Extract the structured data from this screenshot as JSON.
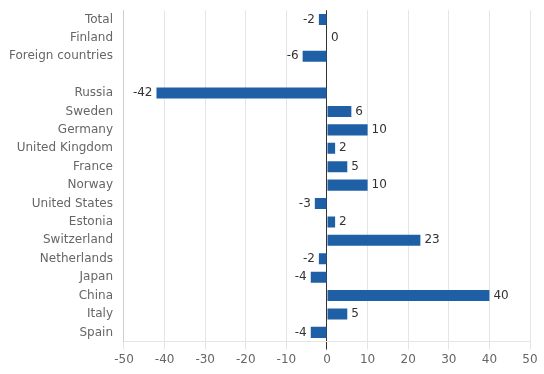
{
  "chart_data": {
    "type": "bar",
    "orientation": "horizontal",
    "categories": [
      "Total",
      "Finland",
      "Foreign countries",
      null,
      "Russia",
      "Sweden",
      "Germany",
      "United Kingdom",
      "France",
      "Norway",
      "United States",
      "Estonia",
      "Switzerland",
      "Netherlands",
      "Japan",
      "China",
      "Italy",
      "Spain"
    ],
    "values": [
      -2,
      0,
      -6,
      null,
      -42,
      6,
      10,
      2,
      5,
      10,
      -3,
      2,
      23,
      -2,
      -4,
      40,
      5,
      -4
    ],
    "color": "#1f5fa6",
    "xlim": [
      -50,
      50
    ],
    "xticks": [
      -50,
      -40,
      -30,
      -20,
      -10,
      0,
      10,
      20,
      30,
      40,
      50
    ],
    "grid": true,
    "data_labels": true
  }
}
